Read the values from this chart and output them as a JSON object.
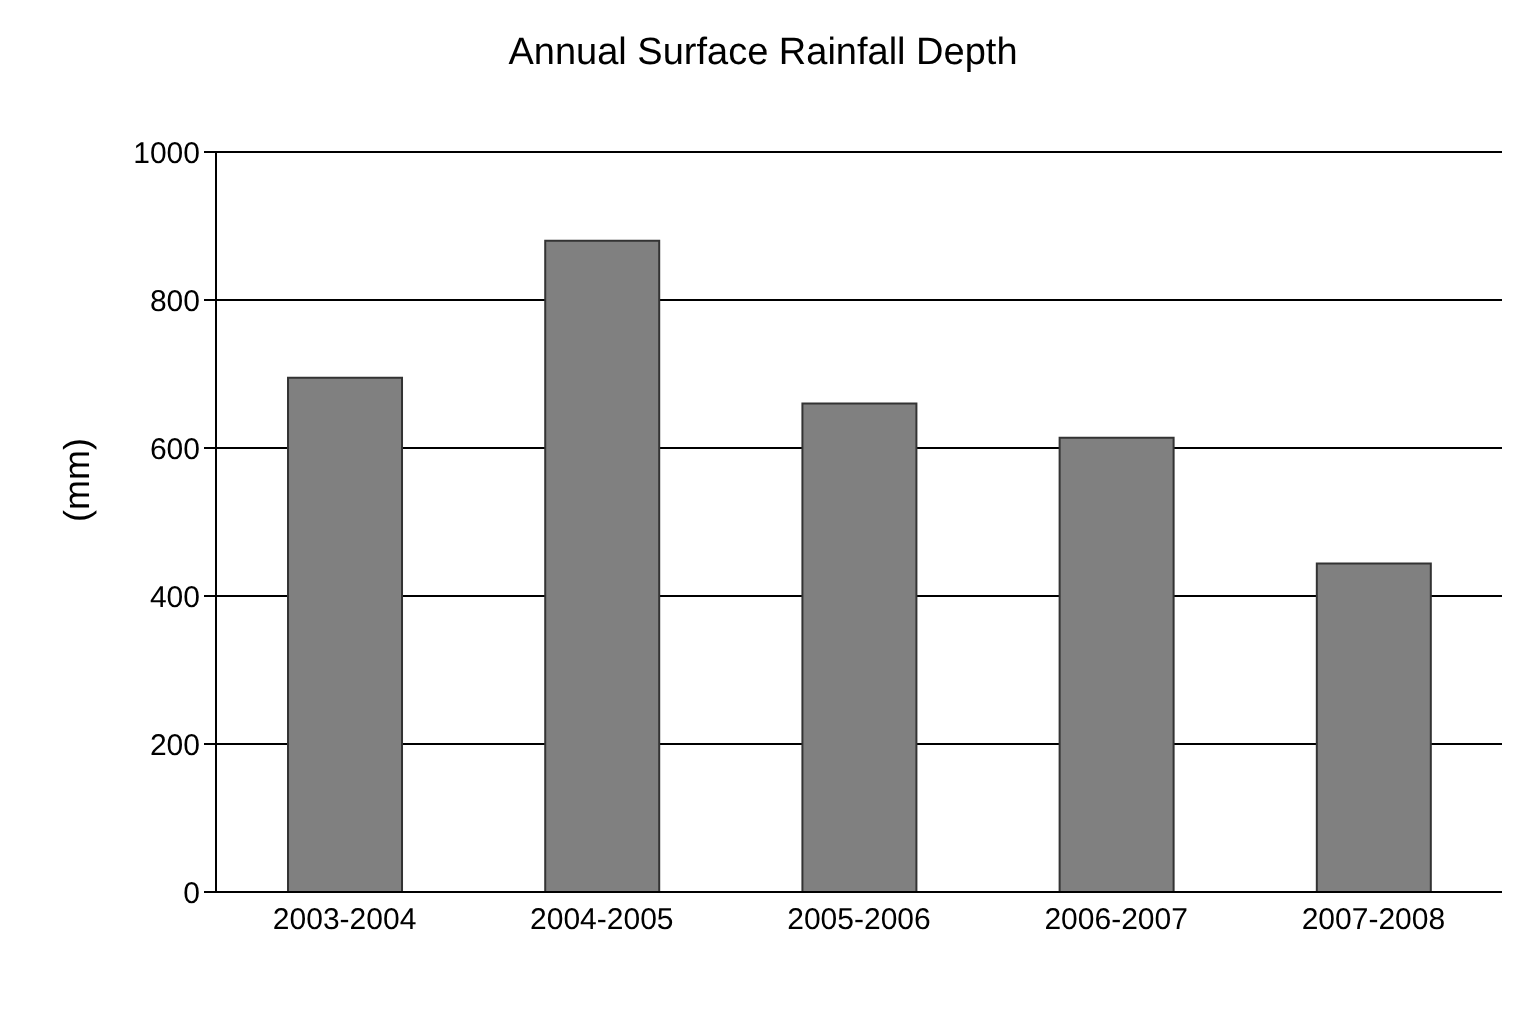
{
  "chart_data": {
    "type": "bar",
    "title": "Annual Surface Rainfall Depth",
    "ylabel": "(mm)",
    "categories": [
      "2003-2004",
      "2004-2005",
      "2005-2006",
      "2006-2007",
      "2007-2008"
    ],
    "values": [
      695,
      880,
      660,
      614,
      444
    ],
    "color": "#808080",
    "ylim": [
      0,
      1000
    ],
    "yticks": [
      0,
      200,
      400,
      600,
      800,
      1000
    ],
    "grid": "y"
  }
}
